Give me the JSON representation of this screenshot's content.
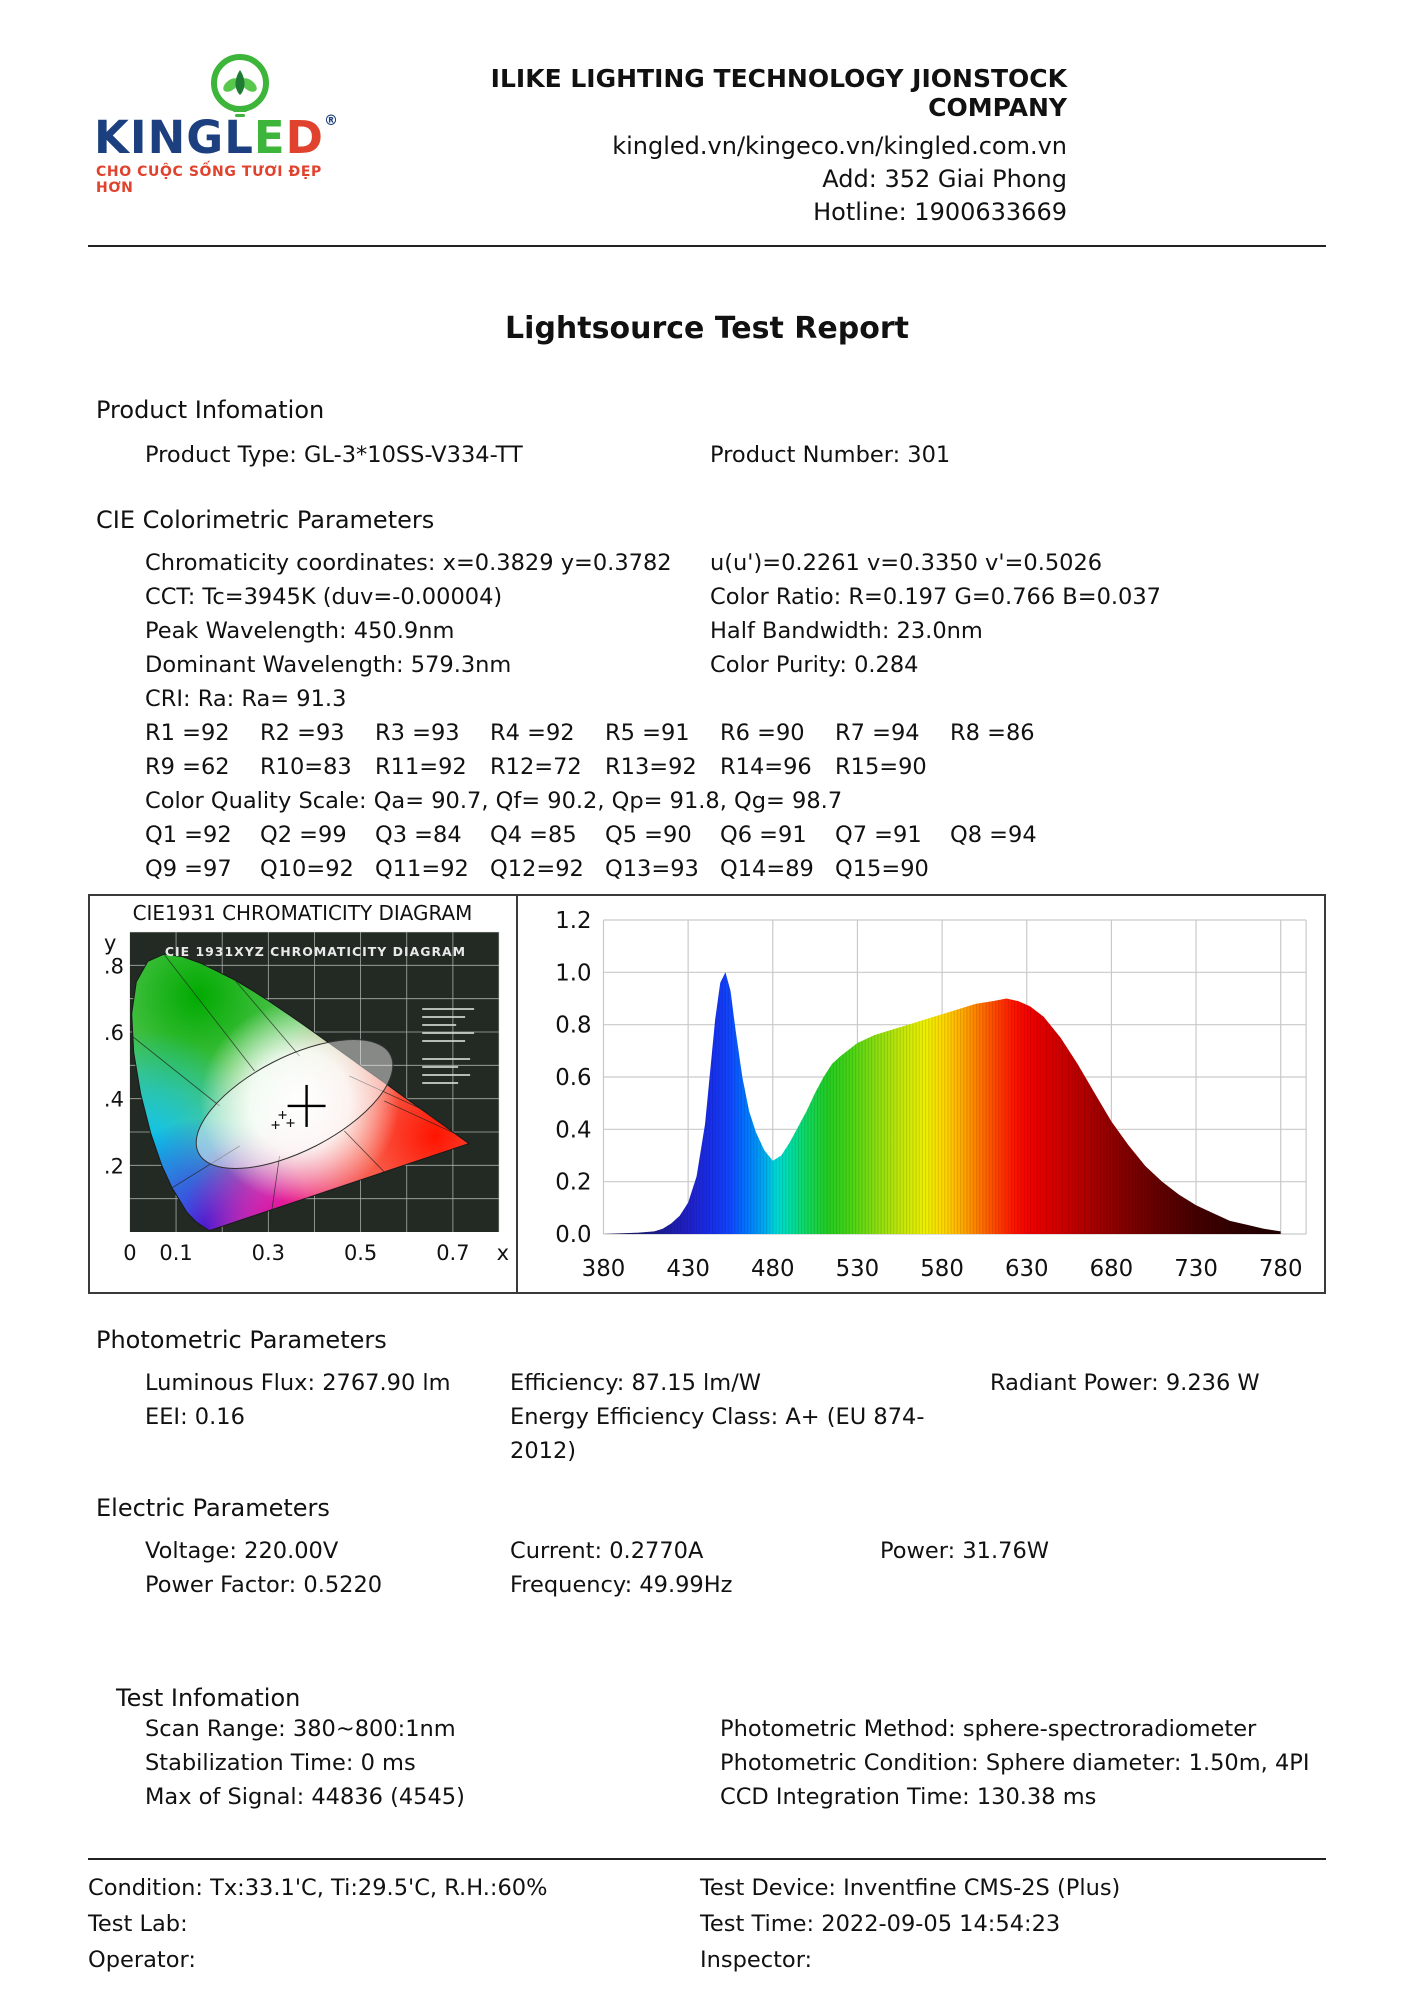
{
  "header": {
    "logo": {
      "brand_prefix": "KINGL",
      "brand_e": "E",
      "brand_d": "D",
      "registered": "®",
      "tagline": "CHO CUỘC SỐNG TƯƠI ĐẸP HƠN",
      "colors": {
        "navy": "#1b3f7f",
        "green": "#3db53a",
        "red": "#e0422d",
        "tagline_red": "#e0422d"
      }
    },
    "company_name": "ILIKE LIGHTING TECHNOLOGY JIONSTOCK COMPANY",
    "websites": "kingled.vn/kingeco.vn/kingled.com.vn",
    "address": "Add: 352 Giai Phong",
    "hotline": "Hotline: 1900633669"
  },
  "title": "Lightsource Test Report",
  "sections": {
    "product": {
      "heading": "Product Infomation",
      "type_line": "Product Type: GL-3*10SS-V334-TT",
      "number_line": "Product Number: 301"
    },
    "cie": {
      "heading": "CIE Colorimetric Parameters",
      "line1_left": "Chromaticity coordinates: x=0.3829 y=0.3782",
      "line1_right": "u(u')=0.2261 v=0.3350 v'=0.5026",
      "rows": [
        {
          "left": "CCT: Tc=3945K (duv=-0.00004)",
          "right": "Color Ratio: R=0.197  G=0.766  B=0.037"
        },
        {
          "left": "Peak Wavelength: 450.9nm",
          "right": "Half Bandwidth: 23.0nm"
        },
        {
          "left": "Dominant Wavelength: 579.3nm",
          "right": "Color Purity: 0.284"
        }
      ],
      "cri_line": "CRI: Ra: Ra= 91.3",
      "r_row1": [
        "R1 =92",
        "R2 =93",
        "R3 =93",
        "R4 =92",
        "R5 =91",
        "R6 =90",
        "R7 =94",
        "R8 =86"
      ],
      "r_row2": [
        "R9 =62",
        "R10=83",
        "R11=92",
        "R12=72",
        "R13=92",
        "R14=96",
        "R15=90"
      ],
      "cqs_line": "Color Quality Scale: Qa= 90.7, Qf= 90.2, Qp= 91.8, Qg= 98.7",
      "q_row1": [
        "Q1 =92",
        "Q2 =99",
        "Q3 =84",
        "Q4 =85",
        "Q5 =90",
        "Q6 =91",
        "Q7 =91",
        "Q8 =94"
      ],
      "q_row2": [
        "Q9 =97",
        "Q10=92",
        "Q11=92",
        "Q12=92",
        "Q13=93",
        "Q14=89",
        "Q15=90"
      ]
    },
    "photometric": {
      "heading": "Photometric Parameters",
      "row1": [
        "Luminous Flux: 2767.90 lm",
        "Efficiency: 87.15 lm/W",
        "Radiant Power: 9.236 W"
      ],
      "row2": [
        "EEI:  0.16",
        "Energy Efficiency Class: A+ (EU 874-2012)"
      ]
    },
    "electric": {
      "heading": "Electric Parameters",
      "row1": [
        "Voltage: 220.00V",
        "Current: 0.2770A",
        "Power: 31.76W"
      ],
      "row2": [
        "Power Factor: 0.5220",
        "Frequency: 49.99Hz"
      ]
    },
    "test_info": {
      "heading": "Test Infomation",
      "left": [
        "Scan Range: 380~800:1nm",
        "Stabilization Time: 0 ms",
        "Max of Signal: 44836 (4545)"
      ],
      "right": [
        "Photometric Method: sphere-spectroradiometer",
        "Photometric Condition: Sphere diameter: 1.50m, 4PI",
        "CCD Integration Time: 130.38 ms"
      ]
    },
    "footer": {
      "left": [
        "Condition: Tx:33.1'C, Ti:29.5'C, R.H.:60%",
        "Test Lab:",
        "Operator:"
      ],
      "right": [
        "Test Device: Inventfine CMS-2S (Plus)",
        "Test Time: 2022-09-05 14:54:23",
        "Inspector:"
      ]
    }
  },
  "chart_data": [
    {
      "type": "heatmap",
      "title": "CIE1931 CHROMATICITY DIAGRAM",
      "inner_title": "CIE 1931XYZ CHROMATICITY DIAGRAM",
      "xlabel": "x",
      "ylabel": "y",
      "xlim": [
        0,
        0.8
      ],
      "ylim": [
        0,
        0.9
      ],
      "x_ticks": [
        {
          "v": 0,
          "label": "0"
        },
        {
          "v": 0.1,
          "label": "0.1"
        },
        {
          "v": 0.3,
          "label": "0.3"
        },
        {
          "v": 0.5,
          "label": "0.5"
        },
        {
          "v": 0.7,
          "label": "0.7"
        }
      ],
      "y_ticks": [
        {
          "v": 0.8,
          "label": ".8"
        },
        {
          "v": 0.6,
          "label": ".6"
        },
        {
          "v": 0.4,
          "label": ".4"
        },
        {
          "v": 0.2,
          "label": ".2"
        }
      ],
      "grid": true,
      "marker": {
        "x": 0.3829,
        "y": 0.3782
      }
    },
    {
      "type": "area",
      "title": "",
      "xlabel": "",
      "ylabel": "",
      "xlim": [
        380,
        795
      ],
      "ylim": [
        0,
        1.2
      ],
      "grid": true,
      "x_ticks": [
        380,
        430,
        480,
        530,
        580,
        630,
        680,
        730,
        780
      ],
      "y_ticks": [
        {
          "v": 0.0,
          "label": "0.0"
        },
        {
          "v": 0.2,
          "label": "0.2"
        },
        {
          "v": 0.4,
          "label": "0.4"
        },
        {
          "v": 0.6,
          "label": "0.6"
        },
        {
          "v": 0.8,
          "label": "0.8"
        },
        {
          "v": 1.0,
          "label": "1.0"
        },
        {
          "v": 1.2,
          "label": "1.2"
        }
      ],
      "x": [
        380,
        400,
        410,
        415,
        420,
        425,
        430,
        435,
        440,
        443,
        446,
        449,
        452,
        455,
        458,
        462,
        466,
        470,
        475,
        480,
        485,
        490,
        495,
        500,
        505,
        510,
        515,
        520,
        530,
        540,
        550,
        560,
        570,
        580,
        590,
        600,
        610,
        618,
        625,
        632,
        640,
        650,
        660,
        670,
        680,
        690,
        700,
        710,
        720,
        730,
        740,
        750,
        760,
        770,
        780
      ],
      "values": [
        0,
        0.005,
        0.01,
        0.02,
        0.04,
        0.07,
        0.12,
        0.22,
        0.42,
        0.62,
        0.82,
        0.96,
        1.0,
        0.93,
        0.78,
        0.6,
        0.47,
        0.39,
        0.32,
        0.28,
        0.3,
        0.35,
        0.41,
        0.47,
        0.54,
        0.6,
        0.65,
        0.68,
        0.73,
        0.76,
        0.78,
        0.8,
        0.82,
        0.84,
        0.86,
        0.88,
        0.89,
        0.9,
        0.89,
        0.87,
        0.83,
        0.75,
        0.65,
        0.54,
        0.43,
        0.34,
        0.26,
        0.2,
        0.15,
        0.11,
        0.08,
        0.05,
        0.035,
        0.02,
        0.01
      ],
      "color_stops": [
        [
          380,
          "#15154a"
        ],
        [
          410,
          "#1c1c8a"
        ],
        [
          430,
          "#2020c8"
        ],
        [
          445,
          "#1730ee"
        ],
        [
          455,
          "#1048ff"
        ],
        [
          465,
          "#0078ff"
        ],
        [
          475,
          "#00aaf0"
        ],
        [
          482,
          "#00d8d8"
        ],
        [
          490,
          "#00dfa8"
        ],
        [
          500,
          "#10d860"
        ],
        [
          512,
          "#22cc22"
        ],
        [
          525,
          "#45d415"
        ],
        [
          540,
          "#85dd10"
        ],
        [
          555,
          "#c0e60a"
        ],
        [
          570,
          "#eef000"
        ],
        [
          582,
          "#ffd400"
        ],
        [
          592,
          "#ffaa00"
        ],
        [
          602,
          "#ff7700"
        ],
        [
          612,
          "#ff4400"
        ],
        [
          622,
          "#ff1500"
        ],
        [
          632,
          "#f00000"
        ],
        [
          645,
          "#d80000"
        ],
        [
          660,
          "#bb0000"
        ],
        [
          675,
          "#9b0000"
        ],
        [
          690,
          "#800000"
        ],
        [
          710,
          "#600000"
        ],
        [
          730,
          "#450000"
        ],
        [
          755,
          "#2e0000"
        ],
        [
          780,
          "#1d0000"
        ]
      ]
    }
  ]
}
